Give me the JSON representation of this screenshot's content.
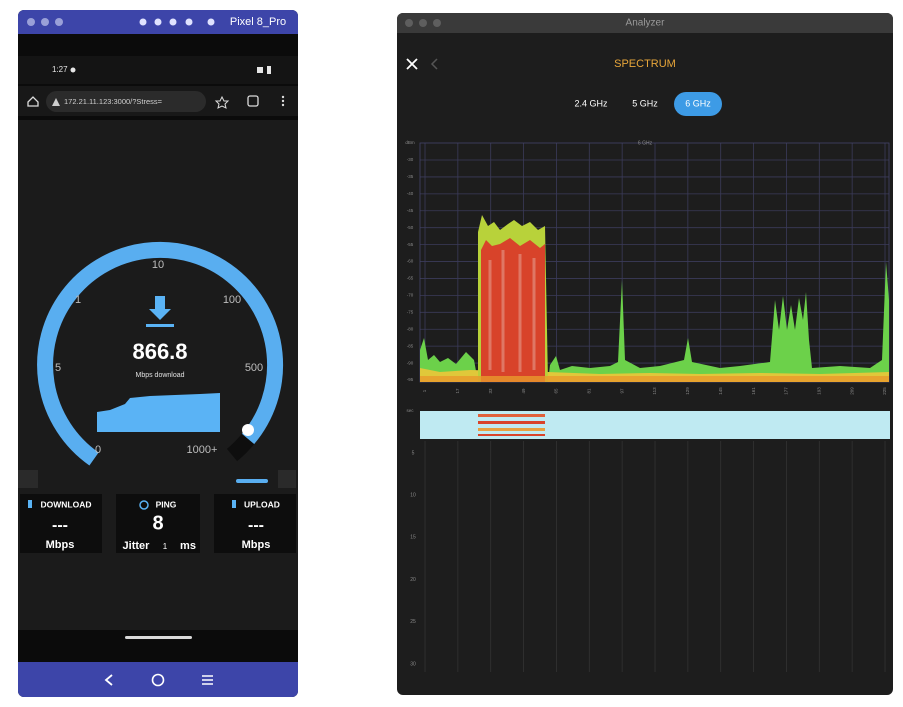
{
  "emulator": {
    "title": "Pixel 8_Pro",
    "status_time": "1:27",
    "url": "172.21.11.123:3000/?Stress=",
    "gauge": {
      "scale_labels": [
        "10",
        "1",
        "100",
        "5",
        "500",
        "0",
        "1000+"
      ],
      "value": "866.8",
      "unit": "Mbps download"
    },
    "cards": [
      {
        "label": "DOWNLOAD",
        "value": "---",
        "unit": "Mbps"
      },
      {
        "label": "PING",
        "value": "8",
        "jitter_label": "Jitter",
        "jitter_value": "1",
        "jitter_unit": "ms"
      },
      {
        "label": "UPLOAD",
        "value": "---",
        "unit": "Mbps"
      }
    ]
  },
  "analyzer": {
    "title": "Analyzer",
    "heading": "SPECTRUM",
    "bands": [
      "2.4 GHz",
      "5 GHz",
      "6 GHz"
    ],
    "chart_label": "6 GHz",
    "y_unit": "dBm",
    "y_labels": [
      "-30",
      "-35",
      "-40",
      "-45",
      "-50",
      "-55",
      "-60",
      "-65",
      "-70",
      "-75",
      "-80",
      "-85",
      "-90",
      "-95"
    ],
    "x_labels": [
      "1",
      "17",
      "33",
      "49",
      "65",
      "81",
      "97",
      "113",
      "129",
      "145",
      "161",
      "177",
      "193",
      "209",
      "225"
    ],
    "waterfall_unit": "sec",
    "waterfall_labels": [
      "5",
      "10",
      "15",
      "20",
      "25",
      "30"
    ]
  }
}
